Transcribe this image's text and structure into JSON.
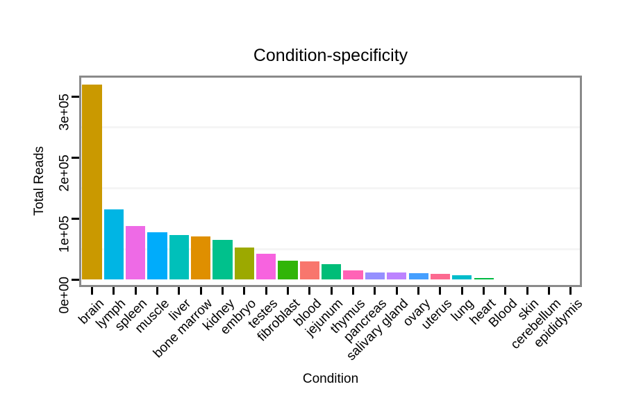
{
  "chart_data": {
    "type": "bar",
    "title": "Condition-specificity",
    "xlabel": "Condition",
    "ylabel": "Total Reads",
    "ylim": [
      0,
      334000
    ],
    "grid": "horizontal minor gridlines only, very light gray",
    "legend": "none",
    "background_color": "#FFFFFF",
    "panel_border_color": "#8A8A8A",
    "tick_color": "#000000",
    "text_color": "#000000",
    "yticks": [
      {
        "value": 0,
        "label": "0e+00"
      },
      {
        "value": 100000,
        "label": "1e+05"
      },
      {
        "value": 200000,
        "label": "2e+05"
      },
      {
        "value": 300000,
        "label": "3e+05"
      }
    ],
    "minor_gridlines": [
      50000,
      150000,
      250000
    ],
    "bars": [
      {
        "category": "brain",
        "value": 319000,
        "color": "#CA9900"
      },
      {
        "category": "lymph",
        "value": 115000,
        "color": "#00B5E4"
      },
      {
        "category": "spleen",
        "value": 87500,
        "color": "#EE6AE6"
      },
      {
        "category": "muscle",
        "value": 77500,
        "color": "#00ACFB"
      },
      {
        "category": "liver",
        "value": 73000,
        "color": "#00C0BA"
      },
      {
        "category": "bone marrow",
        "value": 70500,
        "color": "#DF8F00"
      },
      {
        "category": "kidney",
        "value": 65000,
        "color": "#00C18C"
      },
      {
        "category": "embryo",
        "value": 52500,
        "color": "#9CA900"
      },
      {
        "category": "testes",
        "value": 42000,
        "color": "#F763DF"
      },
      {
        "category": "fibroblast",
        "value": 31000,
        "color": "#31B508"
      },
      {
        "category": "blood",
        "value": 30000,
        "color": "#F8766D"
      },
      {
        "category": "jejunum",
        "value": 25000,
        "color": "#00BD78"
      },
      {
        "category": "thymus",
        "value": 15000,
        "color": "#FF63B6"
      },
      {
        "category": "pancreas",
        "value": 11500,
        "color": "#9590FF"
      },
      {
        "category": "salivary gland",
        "value": 11000,
        "color": "#BC83FF"
      },
      {
        "category": "ovary",
        "value": 10000,
        "color": "#459FFF"
      },
      {
        "category": "uterus",
        "value": 9000,
        "color": "#FC6A90"
      },
      {
        "category": "lung",
        "value": 7000,
        "color": "#00BCCB"
      },
      {
        "category": "heart",
        "value": 2300,
        "color": "#00BA42"
      },
      {
        "category": "Blood",
        "value": 500,
        "color": "#EB8335"
      },
      {
        "category": "skin",
        "value": 400,
        "color": "#E26EF7"
      },
      {
        "category": "cerebellum",
        "value": 300,
        "color": "#A6A400"
      },
      {
        "category": "epididymis",
        "value": 200,
        "color": "#58B300"
      }
    ]
  }
}
